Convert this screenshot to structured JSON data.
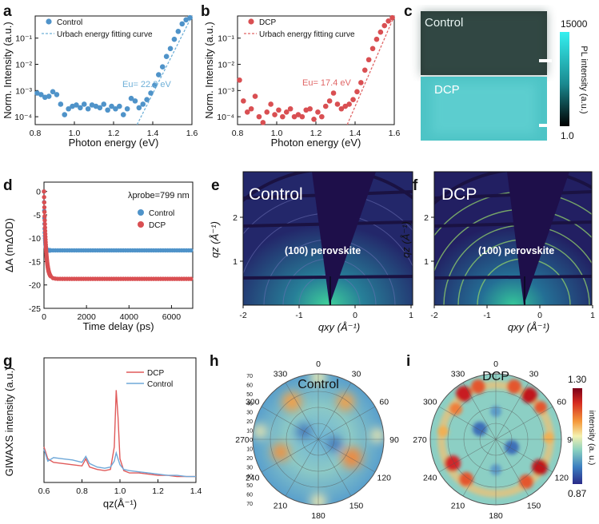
{
  "panels": {
    "a": {
      "label": "a",
      "ylabel": "Norm. Intensity (a.u.)",
      "xlabel": "Photon energy (eV)",
      "legend": [
        "Control",
        "Urbach energy fitting curve"
      ],
      "annotation": "Eu= 22.3 eV",
      "xticks": [
        "0.8",
        "1.0",
        "1.2",
        "1.4",
        "1.6"
      ],
      "yticks": [
        "10⁻⁴",
        "10⁻³",
        "10⁻²",
        "10⁻¹"
      ]
    },
    "b": {
      "label": "b",
      "ylabel": "Norm. Intensity (a.u.)",
      "xlabel": "Photon energy (eV)",
      "legend": [
        "DCP",
        "Urbach energy fitting curve"
      ],
      "annotation": "Eu= 17.4 eV",
      "xticks": [
        "0.8",
        "1.0",
        "1.2",
        "1.4",
        "1.6"
      ],
      "yticks": [
        "10⁻⁴",
        "10⁻³",
        "10⁻²",
        "10⁻¹"
      ]
    },
    "c": {
      "label": "c",
      "top_label": "Control",
      "bottom_label": "DCP",
      "colorbar_max": "15000",
      "colorbar_min": "1.0",
      "colorbar_title": "PL intensity (a.u.)"
    },
    "d": {
      "label": "d",
      "ylabel": "ΔA (mΔOD)",
      "xlabel": "Time delay (ps)",
      "probe_label": "λprobe=799 nm",
      "legend": [
        "Control",
        "DCP"
      ],
      "xticks": [
        "0",
        "2000",
        "4000",
        "6000"
      ],
      "yticks": [
        "0",
        "-5",
        "-10",
        "-15",
        "-20",
        "-25"
      ]
    },
    "e": {
      "label": "e",
      "title": "Control",
      "annotation": "(100) perovskite",
      "xlabel": "qxy (Å⁻¹)",
      "ylabel": "qz (Å⁻¹)",
      "xticks": [
        "-2",
        "-1",
        "0",
        "1"
      ],
      "yticks": [
        "1",
        "2"
      ]
    },
    "f": {
      "label": "f",
      "title": "DCP",
      "annotation": "(100) perovskite",
      "xlabel": "qxy (Å⁻¹)",
      "ylabel": "qz (Å⁻¹)",
      "xticks": [
        "-2",
        "-1",
        "0",
        "1"
      ],
      "yticks": [
        "1",
        "2"
      ]
    },
    "g": {
      "label": "g",
      "ylabel": "GIWAXS intensity (a.u.)",
      "xlabel": "qz(Å⁻¹)",
      "legend": [
        "DCP",
        "Control"
      ],
      "xticks": [
        "0.6",
        "0.8",
        "1.0",
        "1.2",
        "1.4"
      ]
    },
    "h": {
      "label": "h",
      "title": "Control",
      "angles": [
        "0",
        "30",
        "60",
        "90",
        "120",
        "150",
        "180",
        "210",
        "240",
        "270",
        "300",
        "330"
      ],
      "radial": [
        "0",
        "10",
        "20",
        "30",
        "40",
        "50",
        "60",
        "70"
      ]
    },
    "i": {
      "label": "i",
      "title": "DCP",
      "angles": [
        "0",
        "30",
        "60",
        "90",
        "120",
        "150",
        "180",
        "210",
        "240",
        "270",
        "300",
        "330"
      ],
      "colorbar_max": "1.30",
      "colorbar_min": "0.87",
      "colorbar_title": "intensity (a. u.)"
    }
  },
  "chart_data": [
    {
      "type": "scatter",
      "panel": "a",
      "xlabel": "Photon energy (eV)",
      "ylabel": "Norm. Intensity (a.u.)",
      "xlim": [
        0.8,
        1.6
      ],
      "ylim": [
        5e-05,
        0.7
      ],
      "yscale": "log",
      "series": [
        {
          "name": "Control",
          "color": "#4f93c9",
          "x": [
            0.81,
            0.83,
            0.85,
            0.87,
            0.89,
            0.91,
            0.93,
            0.95,
            0.97,
            0.99,
            1.01,
            1.03,
            1.05,
            1.07,
            1.09,
            1.11,
            1.13,
            1.15,
            1.17,
            1.19,
            1.21,
            1.23,
            1.25,
            1.27,
            1.29,
            1.31,
            1.33,
            1.35,
            1.37,
            1.39,
            1.41,
            1.43,
            1.45,
            1.47,
            1.49,
            1.51,
            1.53,
            1.55,
            1.57,
            1.59
          ],
          "y": [
            0.0008,
            0.0007,
            0.00055,
            0.0006,
            0.0009,
            0.0007,
            0.0003,
            0.00012,
            0.0002,
            0.00025,
            0.00028,
            0.00022,
            0.0003,
            0.0002,
            0.00028,
            0.00025,
            0.00022,
            0.0003,
            0.00018,
            0.00025,
            0.0002,
            0.00025,
            0.00012,
            0.0002,
            0.0005,
            0.0004,
            0.00022,
            0.0003,
            0.00045,
            0.0008,
            0.0016,
            0.004,
            0.008,
            0.02,
            0.04,
            0.09,
            0.18,
            0.35,
            0.5,
            0.6
          ]
        },
        {
          "name": "Urbach energy fitting curve",
          "color": "#6fb0d8",
          "x": [
            1.32,
            1.6
          ],
          "y": [
            5e-05,
            0.7
          ]
        }
      ]
    },
    {
      "type": "scatter",
      "panel": "b",
      "xlabel": "Photon energy (eV)",
      "ylabel": "Norm. Intensity (a.u.)",
      "xlim": [
        0.8,
        1.6
      ],
      "ylim": [
        5e-05,
        0.7
      ],
      "yscale": "log",
      "series": [
        {
          "name": "DCP",
          "color": "#d94f52",
          "x": [
            0.81,
            0.83,
            0.85,
            0.87,
            0.89,
            0.91,
            0.93,
            0.95,
            0.97,
            0.99,
            1.01,
            1.03,
            1.05,
            1.07,
            1.09,
            1.11,
            1.13,
            1.15,
            1.17,
            1.19,
            1.21,
            1.23,
            1.25,
            1.27,
            1.29,
            1.31,
            1.33,
            1.35,
            1.37,
            1.39,
            1.41,
            1.43,
            1.45,
            1.47,
            1.49,
            1.51,
            1.53,
            1.55,
            1.57,
            1.59
          ],
          "y": [
            0.0025,
            0.0004,
            0.00015,
            0.0002,
            0.0006,
            0.0001,
            6e-05,
            0.00015,
            0.0003,
            0.00012,
            0.00018,
            0.0001,
            0.00015,
            0.0002,
            0.0001,
            0.00012,
            0.0001,
            0.00018,
            0.0002,
            8e-05,
            0.00015,
            0.0001,
            0.00025,
            0.0004,
            0.0008,
            0.0003,
            0.0002,
            0.00025,
            0.0003,
            0.00045,
            0.0009,
            0.002,
            0.006,
            0.015,
            0.04,
            0.09,
            0.17,
            0.3,
            0.45,
            0.6
          ]
        },
        {
          "name": "Urbach energy fitting curve",
          "color": "#e06666",
          "x": [
            1.36,
            1.6
          ],
          "y": [
            5e-05,
            0.7
          ]
        }
      ]
    },
    {
      "type": "scatter",
      "panel": "d",
      "xlabel": "Time delay (ps)",
      "ylabel": "ΔA (mΔOD)",
      "xlim": [
        0,
        7000
      ],
      "ylim": [
        -25,
        2
      ],
      "series": [
        {
          "name": "Control",
          "color": "#4f93c9",
          "plateau": -12.6,
          "tau": 30
        },
        {
          "name": "DCP",
          "color": "#d94f52",
          "plateau": -18.7,
          "tau": 90
        }
      ]
    },
    {
      "type": "line",
      "panel": "g",
      "xlabel": "qz(Å⁻¹)",
      "ylabel": "GIWAXS intensity (a.u.)",
      "xlim": [
        0.6,
        1.4
      ],
      "series": [
        {
          "name": "DCP",
          "color": "#e05a5a",
          "x": [
            0.6,
            0.62,
            0.65,
            0.7,
            0.75,
            0.8,
            0.82,
            0.84,
            0.88,
            0.92,
            0.95,
            0.97,
            0.98,
            0.99,
            1.0,
            1.02,
            1.05,
            1.1,
            1.15,
            1.2,
            1.25,
            1.3,
            1.35,
            1.4
          ],
          "y": [
            0.3,
            0.2,
            0.17,
            0.16,
            0.15,
            0.14,
            0.2,
            0.13,
            0.11,
            0.1,
            0.11,
            0.3,
            0.78,
            0.55,
            0.2,
            0.1,
            0.08,
            0.08,
            0.07,
            0.06,
            0.06,
            0.05,
            0.05,
            0.05
          ]
        },
        {
          "name": "Control",
          "color": "#6fa8d8",
          "x": [
            0.6,
            0.62,
            0.65,
            0.7,
            0.75,
            0.8,
            0.82,
            0.84,
            0.88,
            0.92,
            0.95,
            0.97,
            0.98,
            0.99,
            1.0,
            1.02,
            1.05,
            1.1,
            1.15,
            1.2,
            1.25,
            1.3,
            1.35,
            1.4
          ],
          "y": [
            0.28,
            0.18,
            0.21,
            0.2,
            0.19,
            0.17,
            0.22,
            0.16,
            0.13,
            0.12,
            0.13,
            0.18,
            0.25,
            0.2,
            0.15,
            0.11,
            0.1,
            0.09,
            0.08,
            0.07,
            0.06,
            0.06,
            0.05,
            0.05
          ]
        }
      ]
    }
  ]
}
